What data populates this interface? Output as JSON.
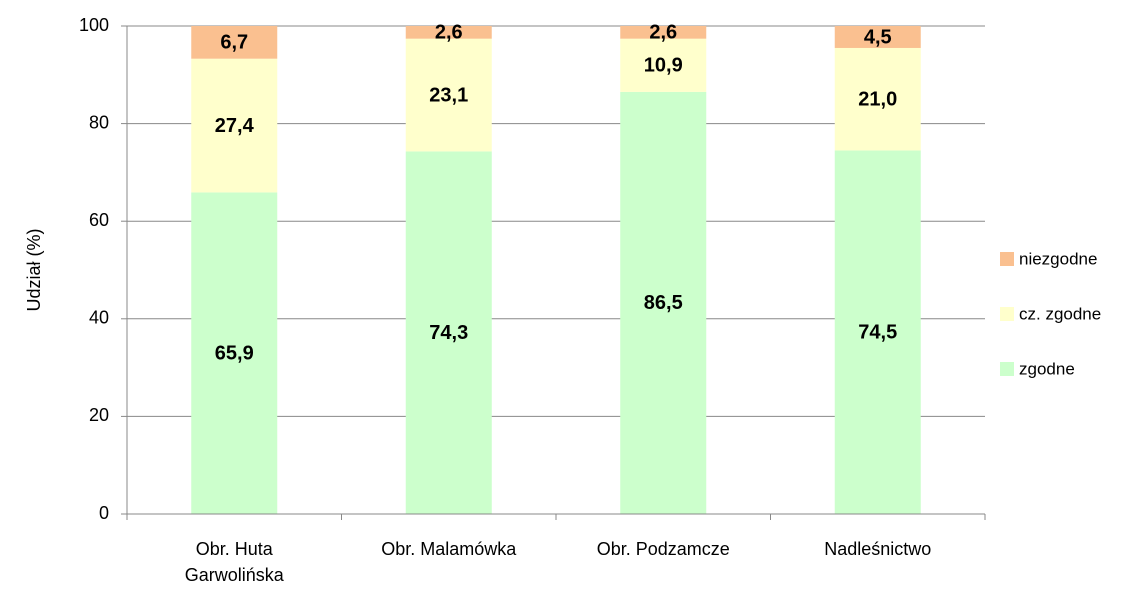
{
  "chart_data": {
    "type": "stacked_bar",
    "y_label": "Udział (%)",
    "categories": [
      "Obr. Huta Garwolińska",
      "Obr. Malamówka",
      "Obr. Podzamcze",
      "Nadleśnictwo"
    ],
    "series": [
      {
        "name": "zgodne",
        "color": "#ccffcc",
        "values": [
          65.9,
          74.3,
          86.5,
          74.5
        ],
        "value_labels": [
          "65,9",
          "74,3",
          "86,5",
          "74,5"
        ]
      },
      {
        "name": "cz. zgodne",
        "color": "#ffffcc",
        "values": [
          27.4,
          23.1,
          10.9,
          21.0
        ],
        "value_labels": [
          "27,4",
          "23,1",
          "10,9",
          "21,0"
        ]
      },
      {
        "name": "niezgodne",
        "color": "#fac090",
        "values": [
          6.7,
          2.6,
          2.6,
          4.5
        ],
        "value_labels": [
          "6,7",
          "2,6",
          "2,6",
          "4,5"
        ]
      }
    ],
    "ylim": [
      0,
      100
    ],
    "yticks": [
      0,
      20,
      40,
      60,
      80,
      100
    ],
    "grid": true,
    "legend": "right"
  }
}
